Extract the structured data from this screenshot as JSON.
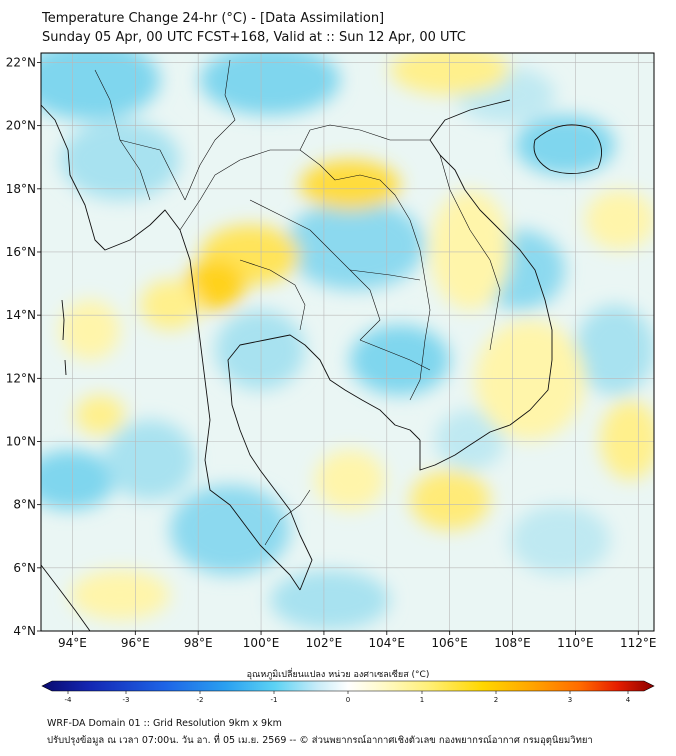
{
  "header": {
    "title_line1": "Temperature Change 24-hr (°C) - [Data Assimilation]",
    "title_line2": "Sunday 05 Apr, 00 UTC FCST+168, Valid at :: Sun 12 Apr, 00 UTC"
  },
  "map": {
    "lon_ticks": [
      "94°E",
      "96°E",
      "98°E",
      "100°E",
      "102°E",
      "104°E",
      "106°E",
      "108°E",
      "110°E",
      "112°E"
    ],
    "lon_values": [
      94,
      96,
      98,
      100,
      102,
      104,
      106,
      108,
      110,
      112
    ],
    "lat_ticks": [
      "22°N",
      "20°N",
      "18°N",
      "16°N",
      "14°N",
      "12°N",
      "10°N",
      "8°N",
      "6°N",
      "4°N"
    ],
    "lat_values": [
      22,
      20,
      18,
      16,
      14,
      12,
      10,
      8,
      6,
      4
    ],
    "extent": {
      "lon_min": 93,
      "lon_max": 112.5,
      "lat_min": 4,
      "lat_max": 22.3
    }
  },
  "colorbar": {
    "label": "อุณหภูมิเปลี่ยนแปลง หน่วย องศาเซลเซียส (°C)",
    "tick_labels": [
      "-4",
      "-3",
      "-2",
      "-1",
      "0",
      "1",
      "2",
      "3",
      "4"
    ],
    "tick_values": [
      -4,
      -3,
      -2,
      -1,
      0,
      1,
      2,
      3,
      4
    ],
    "colors": [
      "#0a0a6e",
      "#1428b4",
      "#1e64e6",
      "#2aa0f0",
      "#3cc8f5",
      "#7ad8f2",
      "#c8ecf8",
      "#ffffff",
      "#fffbd0",
      "#fff07a",
      "#ffd700",
      "#ffa500",
      "#ff6a00",
      "#e61e00",
      "#8c0000"
    ]
  },
  "footer": {
    "line1": "WRF-DA Domain 01 :: Grid Resolution 9km x 9km",
    "line2": "ปรับปรุงข้อมูล ณ เวลา 07:00น. วัน อา. ที่ 05 เม.ย. 2569 -- © ส่วนพยากรณ์อากาศเชิงตัวเลข กองพยากรณ์อากาศ กรมอุตุนิยมวิทยา"
  }
}
